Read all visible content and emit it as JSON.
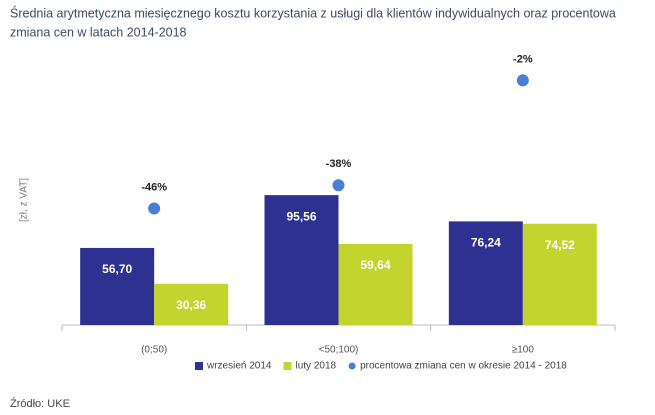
{
  "chart_data": {
    "type": "bar",
    "title": "Średnia arytmetyczna miesięcznego kosztu korzystania z usługi dla klientów indywidualnych oraz procentowa zmiana cen w latach 2014-2018",
    "ylabel": "[zł, z VAT]",
    "source": "Źródło: UKE",
    "categories": [
      "(0;50)",
      "<50;100)",
      "≥100"
    ],
    "series": [
      {
        "name": "wrzesień 2014",
        "color": "#2e3192",
        "values": [
          56.7,
          95.56,
          76.24
        ],
        "value_labels": [
          "56,70",
          "95,56",
          "76,24"
        ]
      },
      {
        "name": "luty 2018",
        "color": "#c3d42e",
        "values": [
          30.36,
          59.64,
          74.52
        ],
        "value_labels": [
          "30,36",
          "59,64",
          "74,52"
        ]
      },
      {
        "name": "procentowa zmiana cen w okresie 2014 - 2018",
        "color": "#4a7fd6",
        "type": "scatter",
        "axis": "y2",
        "values": [
          -46,
          -38,
          -2
        ],
        "value_labels": [
          "-46%",
          "-38%",
          "-2%"
        ]
      }
    ],
    "ylim": [
      0,
      195
    ],
    "y2lim": [
      -86,
      5
    ]
  }
}
